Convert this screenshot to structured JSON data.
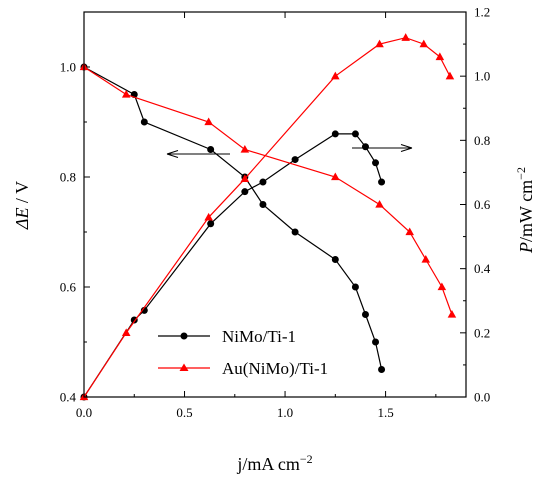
{
  "chart_data": {
    "type": "line",
    "xlabel": "j/mA cm",
    "xlabel_sup": "−2",
    "ylabel_left": "V",
    "ylabel_left_symbol": "ΔE",
    "ylabel_left_sep": " / ",
    "ylabel_right": "/mW cm",
    "ylabel_right_symbol": "P",
    "ylabel_right_sup": "−2",
    "xlim": [
      0,
      1.9
    ],
    "ylim_left": [
      0.4,
      1.1
    ],
    "ylim_right": [
      0,
      1.2
    ],
    "x_ticks": [
      0.0,
      0.5,
      1.0,
      1.5
    ],
    "x_tick_labels": [
      "0.0",
      "0.5",
      "1.0",
      "1.5"
    ],
    "left_ticks": [
      0.4,
      0.6,
      0.8,
      1.0
    ],
    "left_tick_labels": [
      "0.4",
      "0.6",
      "0.8",
      "1.0"
    ],
    "right_ticks": [
      0,
      0.2,
      0.4,
      0.6,
      0.8,
      1.0,
      1.2
    ],
    "right_tick_labels": [
      "0.0",
      "0.2",
      "0.4",
      "0.6",
      "0.8",
      "1.0",
      "1.2"
    ],
    "grid": false,
    "legend_position": "bottom-center",
    "series": [
      {
        "name": "NiMo/Ti-1",
        "color": "#000000",
        "marker": "circle",
        "axis": "left",
        "kind": "voltage",
        "x": [
          0.0,
          0.25,
          0.3,
          0.63,
          0.8,
          0.89,
          1.05,
          1.25,
          1.35,
          1.4,
          1.45,
          1.48
        ],
        "y": [
          1.0,
          0.95,
          0.9,
          0.85,
          0.8,
          0.75,
          0.7,
          0.65,
          0.6,
          0.55,
          0.5,
          0.45
        ]
      },
      {
        "name": "NiMo/Ti-1",
        "color": "#000000",
        "marker": "circle",
        "axis": "right",
        "kind": "power",
        "x": [
          0.0,
          0.25,
          0.3,
          0.63,
          0.8,
          0.89,
          1.05,
          1.25,
          1.35,
          1.4,
          1.45,
          1.48
        ],
        "y": [
          0.0,
          0.24,
          0.27,
          0.54,
          0.64,
          0.67,
          0.74,
          0.82,
          0.82,
          0.78,
          0.73,
          0.67
        ]
      },
      {
        "name": "Au(NiMo)/Ti-1",
        "color": "#ff0000",
        "marker": "triangle",
        "axis": "left",
        "kind": "voltage",
        "x": [
          0.0,
          0.21,
          0.62,
          0.8,
          1.25,
          1.47,
          1.62,
          1.7,
          1.78,
          1.83
        ],
        "y": [
          1.0,
          0.95,
          0.9,
          0.85,
          0.8,
          0.75,
          0.7,
          0.65,
          0.6,
          0.55
        ]
      },
      {
        "name": "Au(NiMo)/Ti-1",
        "color": "#ff0000",
        "marker": "triangle",
        "axis": "right",
        "kind": "power",
        "x": [
          0.0,
          0.21,
          0.62,
          0.8,
          1.25,
          1.47,
          1.6,
          1.69,
          1.77,
          1.82
        ],
        "y": [
          0.0,
          0.2,
          0.56,
          0.68,
          1.0,
          1.1,
          1.12,
          1.1,
          1.06,
          1.0
        ]
      }
    ],
    "legend": [
      {
        "label": "NiMo/Ti-1",
        "color": "#000000",
        "marker": "circle"
      },
      {
        "label": "Au(NiMo)/Ti-1",
        "color": "#ff0000",
        "marker": "triangle"
      }
    ]
  }
}
